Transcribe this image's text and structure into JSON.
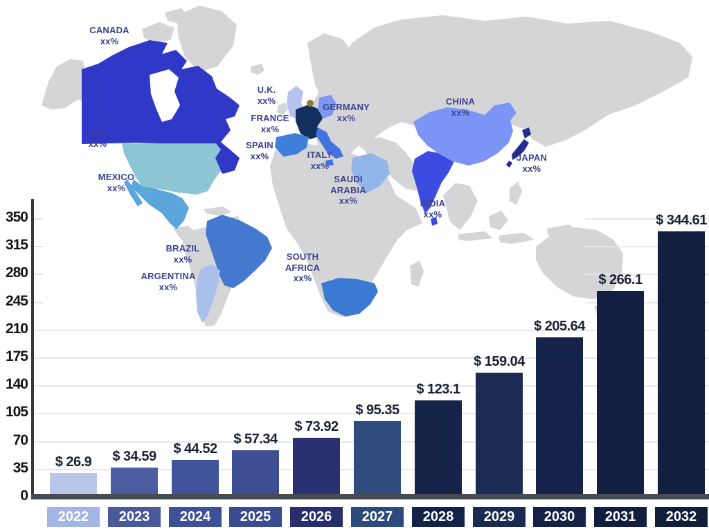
{
  "map": {
    "ocean_color": "#ffffff",
    "land_color": "#d5d5d7",
    "label_color": "#3d4193",
    "extra_region_color": "#8f7d33",
    "countries": [
      {
        "id": "canada",
        "name": "Canada",
        "lines": [
          "CANADA",
          "xx%"
        ],
        "color": "#3038c8"
      },
      {
        "id": "us",
        "name": "United States",
        "lines": [
          "U.S.",
          "xx%"
        ],
        "color": "#8cc6d4"
      },
      {
        "id": "mexico",
        "name": "Mexico",
        "lines": [
          "MEXICO",
          "xx%"
        ],
        "color": "#5ba6da"
      },
      {
        "id": "brazil",
        "name": "Brazil",
        "lines": [
          "BRAZIL",
          "xx%"
        ],
        "color": "#4579cf"
      },
      {
        "id": "argentina",
        "name": "Argentina",
        "lines": [
          "ARGENTINA",
          "xx%"
        ],
        "color": "#a9c0ea"
      },
      {
        "id": "uk",
        "name": "United Kingdom",
        "lines": [
          "U.K.",
          "xx%"
        ],
        "color": "#b6c3ee"
      },
      {
        "id": "france",
        "name": "France",
        "lines": [
          "FRANCE",
          "xx%"
        ],
        "color": "#14305f"
      },
      {
        "id": "spain",
        "name": "Spain",
        "lines": [
          "SPAIN",
          "xx%"
        ],
        "color": "#3f7edb"
      },
      {
        "id": "germany",
        "name": "Germany",
        "lines": [
          "GERMANY",
          "xx%"
        ],
        "color": "#7d97f3"
      },
      {
        "id": "italy",
        "name": "Italy",
        "lines": [
          "ITALY",
          "xx%"
        ],
        "color": "#4273de"
      },
      {
        "id": "saudi",
        "name": "Saudi Arabia",
        "lines": [
          "SAUDI",
          "ARABIA",
          "xx%"
        ],
        "color": "#92b6e9"
      },
      {
        "id": "southafrica",
        "name": "South Africa",
        "lines": [
          "SOUTH",
          "AFRICA",
          "xx%"
        ],
        "color": "#3a7ad2"
      },
      {
        "id": "india",
        "name": "India",
        "lines": [
          "INDIA",
          "xx%"
        ],
        "color": "#3c4ce0"
      },
      {
        "id": "china",
        "name": "China",
        "lines": [
          "CHINA",
          "xx%"
        ],
        "color": "#7a95f5"
      },
      {
        "id": "japan",
        "name": "Japan",
        "lines": [
          "JAPAN",
          "xx%"
        ],
        "color": "#242e91"
      }
    ]
  },
  "chart_data": {
    "type": "bar",
    "title": "",
    "xlabel": "",
    "ylabel": "",
    "legend": "none",
    "grid": true,
    "categories": [
      "2022",
      "2023",
      "2024",
      "2025",
      "2026",
      "2027",
      "2028",
      "2029",
      "2030",
      "2031",
      "2032"
    ],
    "values": [
      26.9,
      34.59,
      44.52,
      57.34,
      73.92,
      95.35,
      123.1,
      159.04,
      205.64,
      266.1,
      344.61
    ],
    "value_labels": [
      "$ 26.9",
      "$ 34.59",
      "$ 44.52",
      "$ 57.34",
      "$ 73.92",
      "$ 95.35",
      "$ 123.1",
      "$ 159.04",
      "$ 205.64",
      "$ 266.1",
      "$ 344.61"
    ],
    "bar_colors": [
      "#b9c6e8",
      "#4d5ea0",
      "#41539a",
      "#3d4e93",
      "#2a3170",
      "#2e4c7e",
      "#152349",
      "#1b2b53",
      "#15234a",
      "#131f42",
      "#121f3e"
    ],
    "year_box_colors": [
      "#a3b5e2",
      "#49599c",
      "#3e5097",
      "#3a4b90",
      "#272e6b",
      "#2c4a7c",
      "#14224a",
      "#1a2a52",
      "#142248",
      "#121e40",
      "#111e3c"
    ],
    "yticks": [
      0,
      35,
      70,
      105,
      140,
      175,
      210,
      245,
      280,
      315,
      350
    ],
    "ylim": [
      0,
      367
    ],
    "value_label_color": "#1b2035",
    "tick_color": "#141414",
    "year_label_color": "#ffffff"
  }
}
